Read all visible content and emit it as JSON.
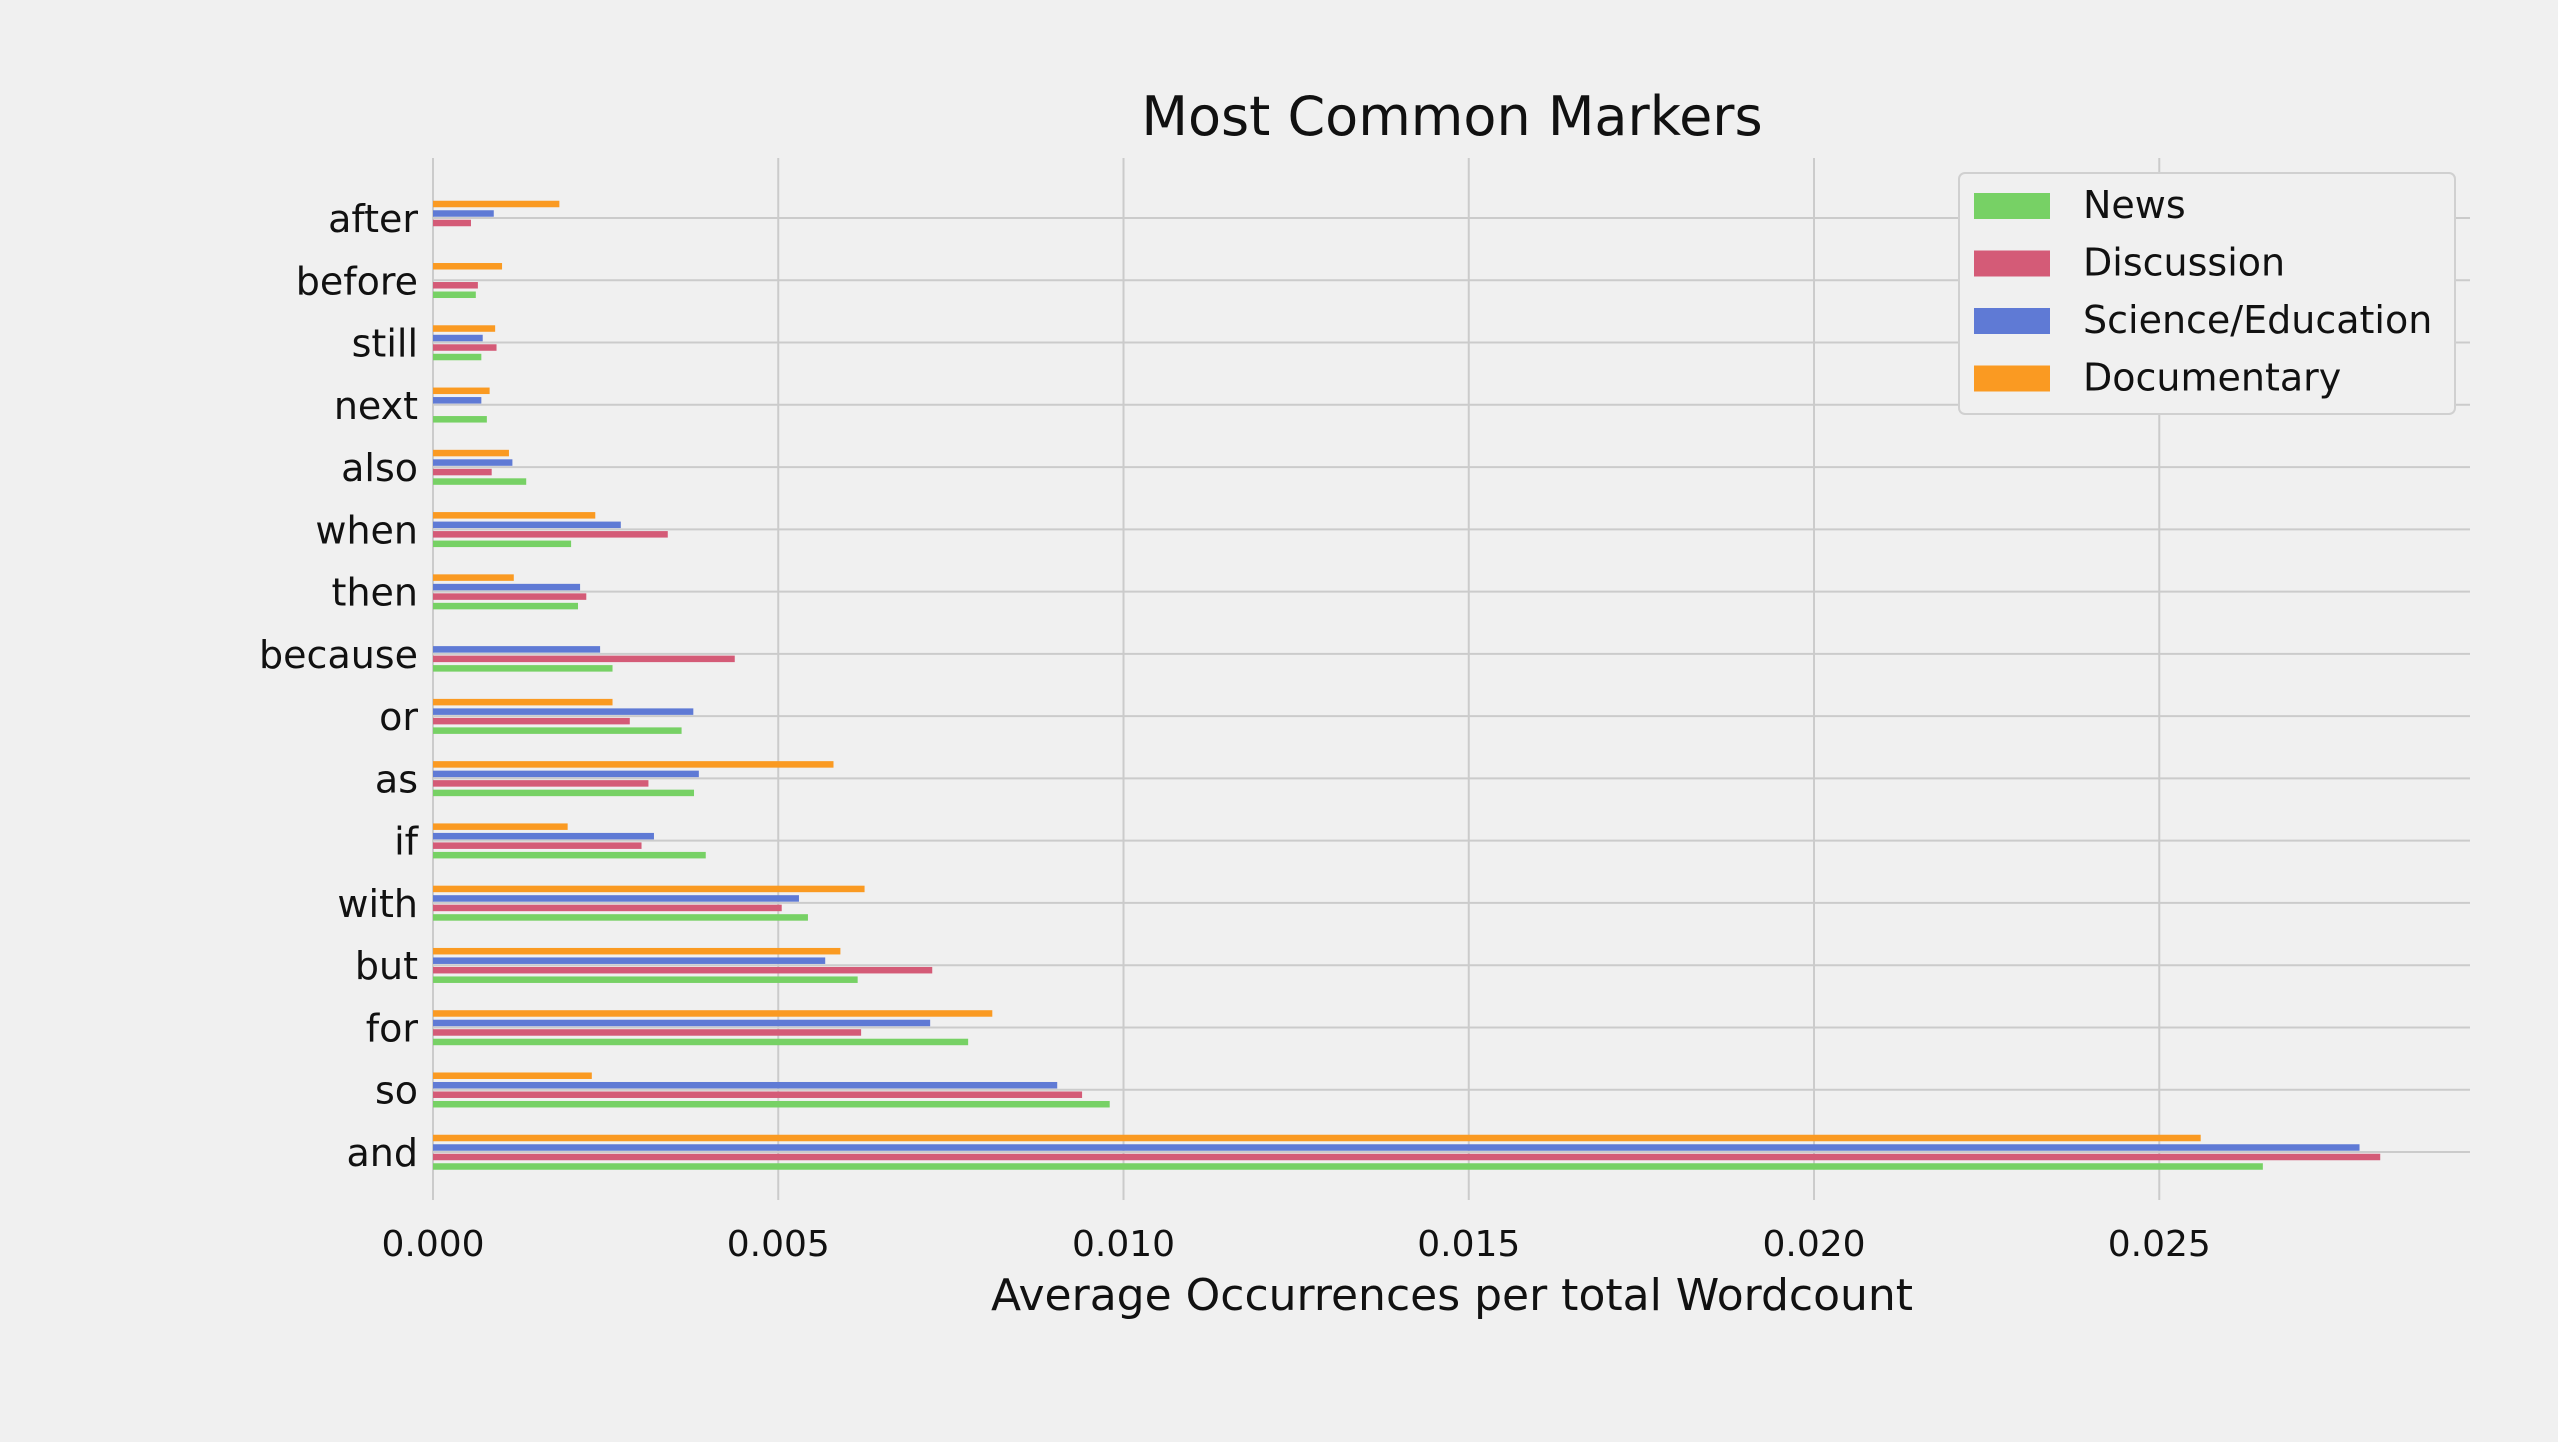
{
  "chart_data": {
    "type": "bar",
    "orientation": "horizontal",
    "title": "Most Common Markers",
    "xlabel": "Average Occurrences per total Wordcount",
    "ylabel": "",
    "xlim": [
      0,
      0.0295
    ],
    "xticks": [
      0.0,
      0.005,
      0.01,
      0.015,
      0.02,
      0.025
    ],
    "xtick_labels": [
      "0.000",
      "0.005",
      "0.010",
      "0.015",
      "0.020",
      "0.025"
    ],
    "grid": true,
    "legend_position": "top-right",
    "categories": [
      "and",
      "so",
      "for",
      "but",
      "with",
      "if",
      "as",
      "or",
      "because",
      "then",
      "when",
      "also",
      "next",
      "still",
      "before",
      "after"
    ],
    "series": [
      {
        "name": "News",
        "color": "#77d165",
        "values": [
          0.0265,
          0.0098,
          0.00775,
          0.00615,
          0.00543,
          0.00395,
          0.00378,
          0.0036,
          0.0026,
          0.0021,
          0.002,
          0.00135,
          0.00078,
          0.0007,
          0.00062,
          0.0
        ]
      },
      {
        "name": "Discussion",
        "color": "#d45b77",
        "values": [
          0.0282,
          0.0094,
          0.0062,
          0.00723,
          0.00505,
          0.00302,
          0.00312,
          0.00285,
          0.00437,
          0.00222,
          0.0034,
          0.00085,
          0.0,
          0.00092,
          0.00065,
          0.00055
        ]
      },
      {
        "name": "Science/Education",
        "color": "#5f7ad5",
        "values": [
          0.0279,
          0.00904,
          0.0072,
          0.00568,
          0.0053,
          0.0032,
          0.00385,
          0.00377,
          0.00242,
          0.00213,
          0.00272,
          0.00115,
          0.0007,
          0.00072,
          0.0,
          0.00088
        ]
      },
      {
        "name": "Documentary",
        "color": "#fa9a22",
        "values": [
          0.0256,
          0.0023,
          0.0081,
          0.0059,
          0.00625,
          0.00195,
          0.0058,
          0.0026,
          0.0,
          0.00117,
          0.00235,
          0.0011,
          0.00082,
          0.0009,
          0.001,
          0.00183
        ]
      }
    ]
  }
}
